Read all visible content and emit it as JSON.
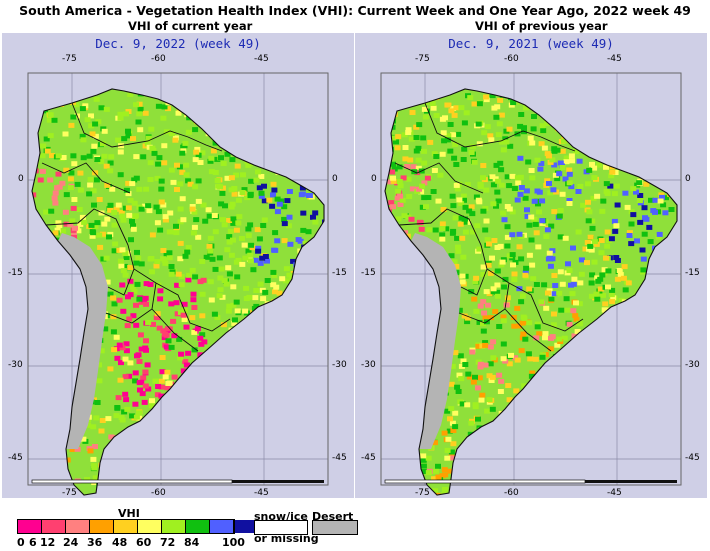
{
  "title": "South America - Vegetation Health Index (VHI): Current Week and One Year Ago, 2022 week 49",
  "panels": [
    {
      "subtitle": "VHI of current year",
      "date": "Dec. 9, 2022 (week 49)",
      "top_lon_ticks": [
        "-75",
        "-60",
        "-45"
      ],
      "bottom_lon_ticks": [
        "-75",
        "-60",
        "-45"
      ],
      "lat_ticks": [
        "0",
        "-15",
        "-30",
        "-45"
      ]
    },
    {
      "subtitle": "VHI of previous year",
      "date": "Dec. 9, 2021 (week 49)",
      "top_lon_ticks": [
        "-75",
        "-60",
        "-45"
      ],
      "bottom_lon_ticks": [
        "-75",
        "-60",
        "-45"
      ],
      "lat_ticks": [
        "0",
        "-15",
        "-30",
        "-45"
      ]
    }
  ],
  "legend": {
    "title": "VHI",
    "labels": [
      "0",
      "6",
      "12",
      "24",
      "36",
      "48",
      "60",
      "72",
      "84",
      "100"
    ],
    "colors": [
      "#ff0090",
      "#ff4070",
      "#ff8080",
      "#ffa000",
      "#ffd020",
      "#ffff60",
      "#a0f020",
      "#10c010",
      "#5060ff",
      "#1010a0"
    ],
    "snow_label": "snow/ice",
    "missing_label": "or missing",
    "desert_label": "Desert"
  }
}
